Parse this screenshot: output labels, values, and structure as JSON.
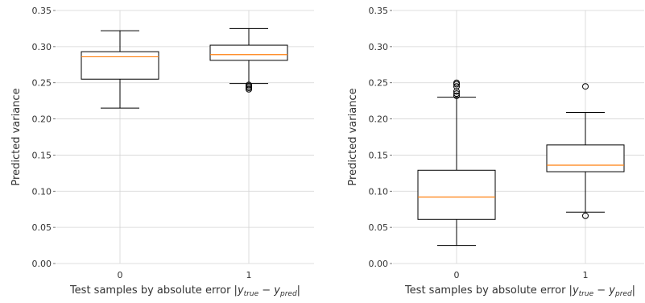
{
  "chart_data": [
    {
      "type": "box",
      "xlabel": "Test samples by absolute error |y_true − y_pred|",
      "xlabel_parts": {
        "prefix": "Test samples by absolute error |",
        "y1": "y",
        "sub1": "true",
        "op": " − ",
        "y2": "y",
        "sub2": "pred",
        "suffix": "|"
      },
      "ylabel": "Predicted variance",
      "categories": [
        "0",
        "1"
      ],
      "ylim": [
        0,
        0.35
      ],
      "yticks": [
        "0.00",
        "0.05",
        "0.10",
        "0.15",
        "0.20",
        "0.25",
        "0.30",
        "0.35"
      ],
      "grid": true,
      "median_color": "#ff7f0e",
      "boxes": [
        {
          "category": "0",
          "whislo": 0.215,
          "q1": 0.255,
          "med": 0.286,
          "q3": 0.293,
          "whishi": 0.322,
          "fliers": []
        },
        {
          "category": "1",
          "whislo": 0.249,
          "q1": 0.281,
          "med": 0.289,
          "q3": 0.302,
          "whishi": 0.325,
          "fliers": [
            0.241,
            0.243,
            0.245,
            0.247
          ]
        }
      ]
    },
    {
      "type": "box",
      "xlabel": "Test samples by absolute error |y_true − y_pred|",
      "xlabel_parts": {
        "prefix": "Test samples by absolute error |",
        "y1": "y",
        "sub1": "true",
        "op": " − ",
        "y2": "y",
        "sub2": "pred",
        "suffix": "|"
      },
      "ylabel": "Predicted variance",
      "categories": [
        "0",
        "1"
      ],
      "ylim": [
        0,
        0.35
      ],
      "yticks": [
        "0.00",
        "0.05",
        "0.10",
        "0.15",
        "0.20",
        "0.25",
        "0.30",
        "0.35"
      ],
      "grid": true,
      "median_color": "#ff7f0e",
      "boxes": [
        {
          "category": "0",
          "whislo": 0.025,
          "q1": 0.061,
          "med": 0.092,
          "q3": 0.129,
          "whishi": 0.23,
          "fliers": [
            0.232,
            0.235,
            0.238,
            0.245,
            0.248,
            0.25
          ]
        },
        {
          "category": "1",
          "whislo": 0.071,
          "q1": 0.127,
          "med": 0.136,
          "q3": 0.164,
          "whishi": 0.209,
          "fliers": [
            0.066,
            0.245
          ]
        }
      ]
    }
  ]
}
